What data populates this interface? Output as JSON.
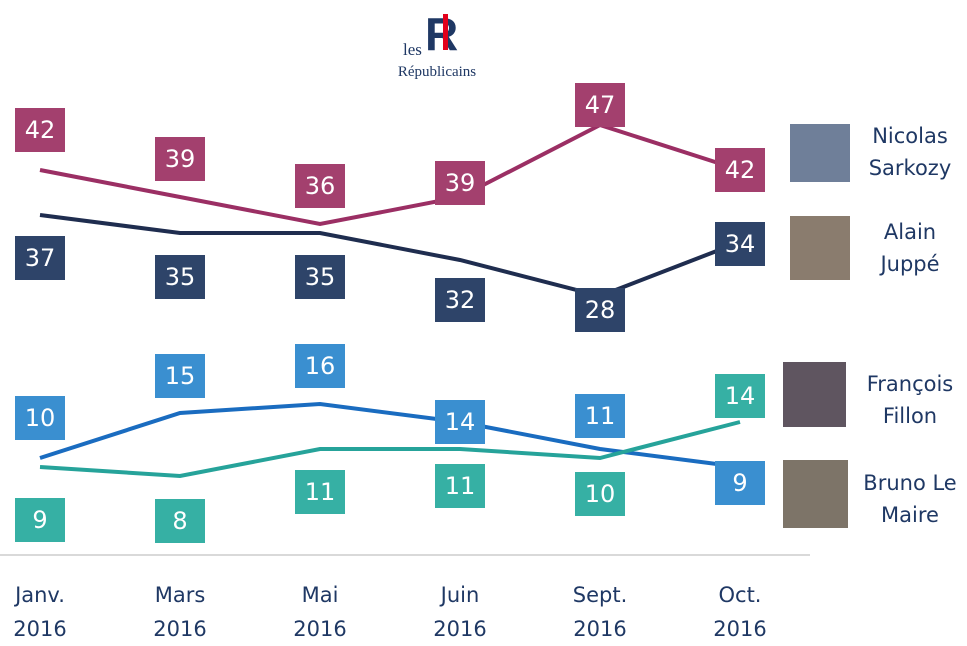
{
  "logo": {
    "small": "les",
    "letters": "R",
    "name": "Républicains"
  },
  "chart_data": {
    "type": "line",
    "categories": [
      "Janv. 2016",
      "Mars 2016",
      "Mai 2016",
      "Juin 2016",
      "Sept. 2016",
      "Oct. 2016"
    ],
    "series": [
      {
        "name": "Nicolas Sarkozy",
        "color": "#a3406e",
        "values": [
          42,
          39,
          36,
          39,
          47,
          42
        ]
      },
      {
        "name": "Alain Juppé",
        "color": "#2e4469",
        "values": [
          37,
          35,
          35,
          32,
          28,
          34
        ]
      },
      {
        "name": "François Fillon",
        "color": "#3a8fd0",
        "values": [
          10,
          15,
          16,
          14,
          11,
          9
        ]
      },
      {
        "name": "Bruno Le Maire",
        "color": "#36b0a4",
        "values": [
          9,
          8,
          11,
          11,
          10,
          14
        ]
      }
    ]
  }
}
